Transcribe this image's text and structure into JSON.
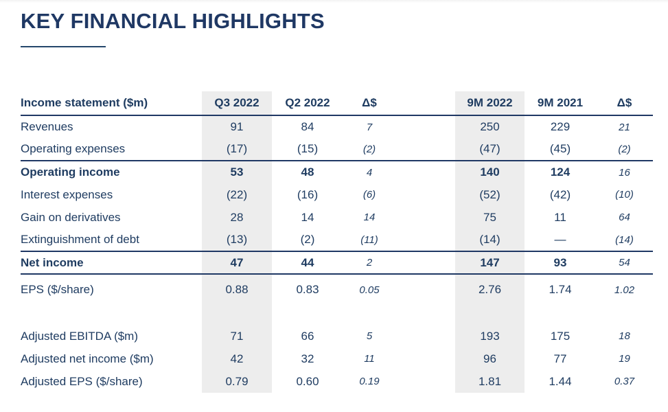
{
  "page_title": "KEY FINANCIAL HIGHLIGHTS",
  "colors": {
    "accent_navy": "#1F3864",
    "text_navy": "#1F3C61",
    "column_shade": "#EDEDED"
  },
  "table": {
    "columns": [
      {
        "label": "Income statement ($m)",
        "shaded": false,
        "delta": false
      },
      {
        "label": "Q3 2022",
        "shaded": true,
        "delta": false
      },
      {
        "label": "Q2 2022",
        "shaded": false,
        "delta": false
      },
      {
        "label": "Δ$",
        "shaded": false,
        "delta": true
      },
      {
        "label": "9M 2022",
        "shaded": true,
        "delta": false
      },
      {
        "label": "9M 2021",
        "shaded": false,
        "delta": false
      },
      {
        "label": "Δ$",
        "shaded": false,
        "delta": true
      }
    ],
    "rows": [
      {
        "label": "Revenues",
        "values": [
          "91",
          "84",
          "7",
          "250",
          "229",
          "21"
        ],
        "bold": false,
        "border_bottom": false,
        "spacer": false,
        "tall": false
      },
      {
        "label": "Operating expenses",
        "values": [
          "(17)",
          "(15)",
          "(2)",
          "(47)",
          "(45)",
          "(2)"
        ],
        "bold": false,
        "border_bottom": true,
        "spacer": false,
        "tall": false
      },
      {
        "label": "Operating income",
        "values": [
          "53",
          "48",
          "4",
          "140",
          "124",
          "16"
        ],
        "bold": true,
        "border_bottom": false,
        "spacer": false,
        "tall": false
      },
      {
        "label": "Interest expenses",
        "values": [
          "(22)",
          "(16)",
          "(6)",
          "(52)",
          "(42)",
          "(10)"
        ],
        "bold": false,
        "border_bottom": false,
        "spacer": false,
        "tall": false
      },
      {
        "label": "Gain on derivatives",
        "values": [
          "28",
          "14",
          "14",
          "75",
          "11",
          "64"
        ],
        "bold": false,
        "border_bottom": false,
        "spacer": false,
        "tall": false
      },
      {
        "label": "Extinguishment of debt",
        "values": [
          "(13)",
          "(2)",
          "(11)",
          "(14)",
          "—",
          "(14)"
        ],
        "bold": false,
        "border_bottom": true,
        "spacer": false,
        "tall": false
      },
      {
        "label": "Net income",
        "values": [
          "47",
          "44",
          "2",
          "147",
          "93",
          "54"
        ],
        "bold": true,
        "border_bottom": true,
        "spacer": false,
        "tall": false
      },
      {
        "label": "EPS ($/share)",
        "values": [
          "0.88",
          "0.83",
          "0.05",
          "2.76",
          "1.74",
          "1.02"
        ],
        "bold": false,
        "border_bottom": false,
        "spacer": false,
        "tall": true
      },
      {
        "label": "",
        "values": [
          "",
          "",
          "",
          "",
          "",
          ""
        ],
        "bold": false,
        "border_bottom": false,
        "spacer": true,
        "tall": false
      },
      {
        "label": "Adjusted EBITDA ($m)",
        "values": [
          "71",
          "66",
          "5",
          "193",
          "175",
          "18"
        ],
        "bold": false,
        "border_bottom": false,
        "spacer": false,
        "tall": false
      },
      {
        "label": "Adjusted net income ($m)",
        "values": [
          "42",
          "32",
          "11",
          "96",
          "77",
          "19"
        ],
        "bold": false,
        "border_bottom": false,
        "spacer": false,
        "tall": false
      },
      {
        "label": "Adjusted EPS ($/share)",
        "values": [
          "0.79",
          "0.60",
          "0.19",
          "1.81",
          "1.44",
          "0.37"
        ],
        "bold": false,
        "border_bottom": false,
        "spacer": false,
        "tall": false
      }
    ]
  }
}
